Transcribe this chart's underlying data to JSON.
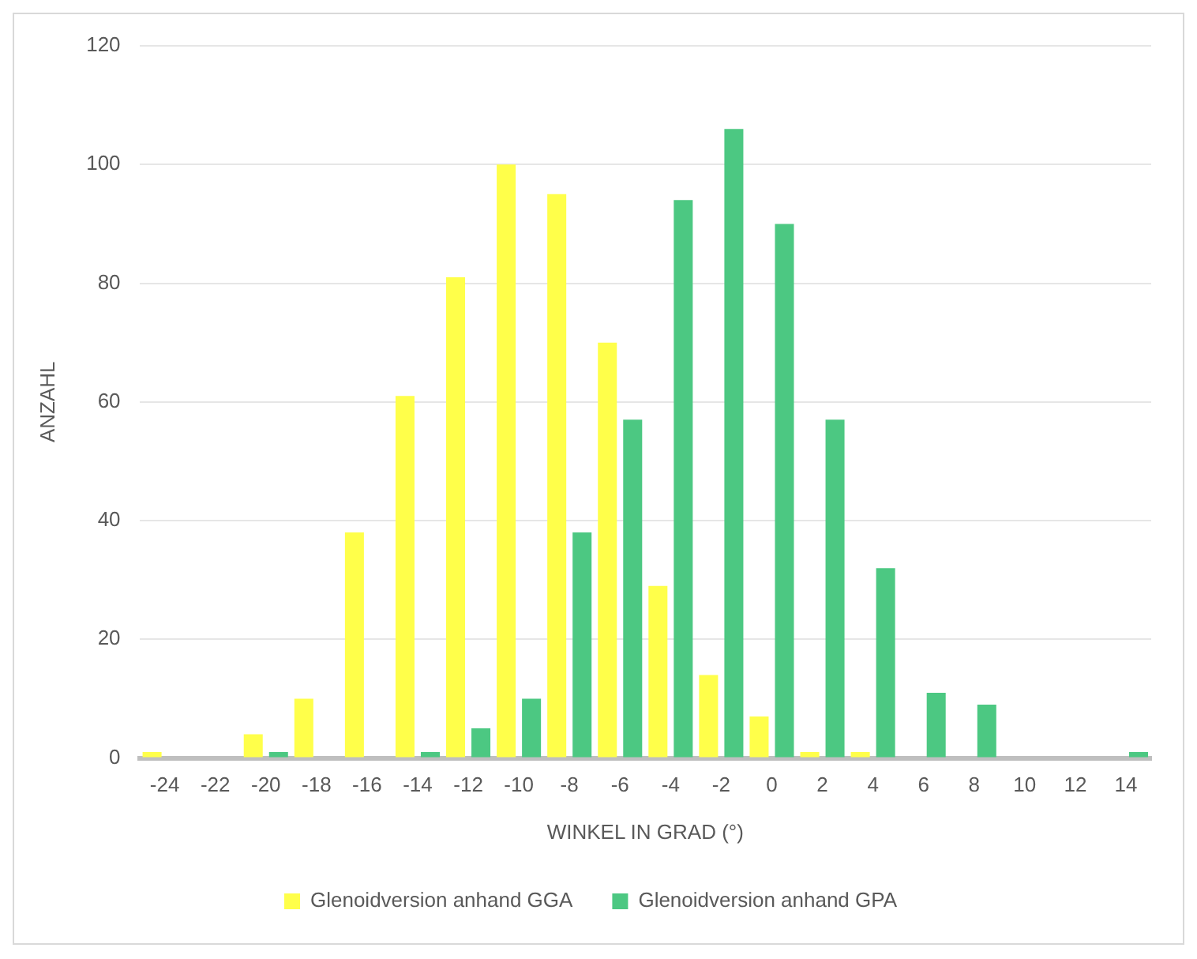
{
  "chart_data": {
    "type": "bar",
    "xlabel": "WINKEL IN GRAD (°)",
    "ylabel": "ANZAHL",
    "categories": [
      "-24",
      "-22",
      "-20",
      "-18",
      "-16",
      "-14",
      "-12",
      "-10",
      "-8",
      "-6",
      "-4",
      "-2",
      "0",
      "2",
      "4",
      "6",
      "8",
      "10",
      "12",
      "14"
    ],
    "series": [
      {
        "name": "Glenoidversion anhand GGA",
        "color": "#ffff4a",
        "values": [
          1,
          0,
          4,
          10,
          38,
          61,
          81,
          100,
          95,
          70,
          29,
          14,
          7,
          1,
          1,
          0,
          0,
          0,
          0,
          0
        ]
      },
      {
        "name": "Glenoidversion anhand GPA",
        "color": "#4cc882",
        "values": [
          0,
          0,
          1,
          0,
          0,
          1,
          5,
          10,
          38,
          57,
          94,
          106,
          90,
          57,
          32,
          11,
          9,
          0,
          0,
          1
        ]
      }
    ],
    "ylim": [
      0,
      120
    ],
    "yticks": [
      0,
      20,
      40,
      60,
      80,
      100,
      120
    ],
    "grid": "y",
    "legend": "bottom"
  }
}
